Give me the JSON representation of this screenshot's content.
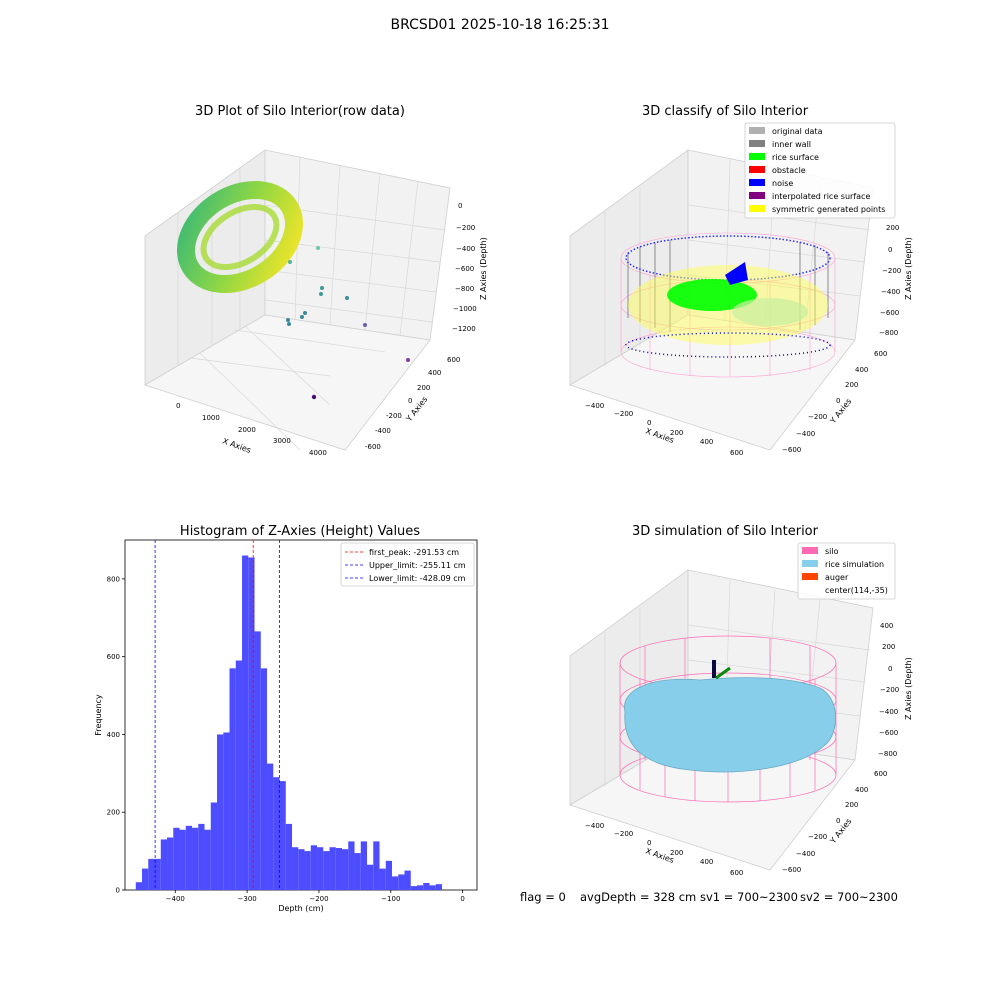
{
  "suptitle": "BRCSD01 2025-10-18 16:25:31",
  "footer": {
    "flag": "flag = 0",
    "avg_depth": "avgDepth = 328 cm",
    "sv1": "sv1 = 700~2300",
    "sv2": "sv2 = 700~2300"
  },
  "colors": {
    "histogram_bar": "#4d4dff",
    "first_peak_line": "#ff0000",
    "limit_lines": "#0000ff",
    "silo": "#ff69b4",
    "rice_simulation": "#87ceeb",
    "auger": "#ff4500"
  },
  "chart_data": [
    {
      "type": "scatter",
      "title": "3D Plot of Silo Interior(row data)",
      "xlabel": "X Axies",
      "ylabel": "Y Axies",
      "zlabel": "Z Axies (Depth)",
      "x_ticks": [
        "0",
        "1000",
        "2000",
        "3000",
        "4000"
      ],
      "y_ticks": [
        "-600",
        "-400",
        "-200",
        "0",
        "200",
        "400",
        "600"
      ],
      "z_ticks": [
        "0",
        "−200",
        "−400",
        "−600",
        "−800",
        "−1000",
        "−1200"
      ],
      "colormap": "viridis"
    },
    {
      "type": "scatter",
      "title": "3D classify of Silo Interior",
      "xlabel": "X Axies",
      "ylabel": "Y Axies",
      "zlabel": "Z Axies (Depth)",
      "x_ticks": [
        "−400",
        "−200",
        "0",
        "200",
        "400",
        "600"
      ],
      "y_ticks": [
        "−600",
        "−400",
        "−200",
        "0",
        "200",
        "400",
        "600"
      ],
      "z_ticks": [
        "200",
        "0",
        "−200",
        "−400",
        "−600",
        "−800"
      ],
      "legend_position": "top-right",
      "legend": [
        {
          "label": "original data",
          "color": "#b0b0b0"
        },
        {
          "label": "inner wall",
          "color": "#808080"
        },
        {
          "label": "rice surface",
          "color": "#00ff00"
        },
        {
          "label": "obstacle",
          "color": "#ff0000"
        },
        {
          "label": "noise",
          "color": "#0000ff"
        },
        {
          "label": "interpolated rice surface",
          "color": "#800080"
        },
        {
          "label": "symmetric generated points",
          "color": "#ffff00"
        }
      ]
    },
    {
      "type": "bar",
      "title": "Histogram of Z-Axies (Height) Values",
      "xlabel": "Depth (cm)",
      "ylabel": "Frequency",
      "xlim": [
        -470,
        20
      ],
      "ylim": [
        0,
        900
      ],
      "x_ticks": [
        -400,
        -300,
        -200,
        -100,
        0
      ],
      "y_ticks": [
        0,
        200,
        400,
        600,
        800
      ],
      "bin_start": -455,
      "bin_width": 8.7,
      "values": [
        20,
        55,
        80,
        80,
        130,
        135,
        160,
        155,
        165,
        160,
        170,
        155,
        225,
        400,
        405,
        570,
        590,
        860,
        855,
        665,
        570,
        325,
        290,
        280,
        170,
        110,
        105,
        100,
        115,
        110,
        100,
        110,
        108,
        105,
        125,
        95,
        125,
        65,
        125,
        55,
        75,
        35,
        40,
        50,
        10,
        12,
        18,
        12,
        15
      ],
      "vlines": [
        {
          "label": "first_peak: -291.53 cm",
          "x": -291.53,
          "color": "#ff0000"
        },
        {
          "label": "Upper_limit: -255.11 cm",
          "x": -255.11,
          "color": "#0000ff"
        },
        {
          "label": "Lower_limit: -428.09 cm",
          "x": -428.09,
          "color": "#0000ff"
        }
      ],
      "legend_position": "top-right"
    },
    {
      "type": "area",
      "title": "3D simulation of Silo Interior",
      "xlabel": "X Axies",
      "ylabel": "Y Axies",
      "zlabel": "Z Axies (Depth)",
      "x_ticks": [
        "−400",
        "−200",
        "0",
        "200",
        "400",
        "600"
      ],
      "y_ticks": [
        "−600",
        "−400",
        "−200",
        "0",
        "200",
        "400",
        "600"
      ],
      "z_ticks": [
        "400",
        "200",
        "0",
        "−200",
        "−400",
        "−600",
        "−800"
      ],
      "legend_position": "top-right",
      "legend": [
        {
          "label": "silo",
          "color": "#ff69b4"
        },
        {
          "label": "rice simulation",
          "color": "#87ceeb"
        },
        {
          "label": "auger",
          "color": "#ff4500"
        },
        {
          "label": "center(114,-35)",
          "color": ""
        }
      ]
    }
  ]
}
